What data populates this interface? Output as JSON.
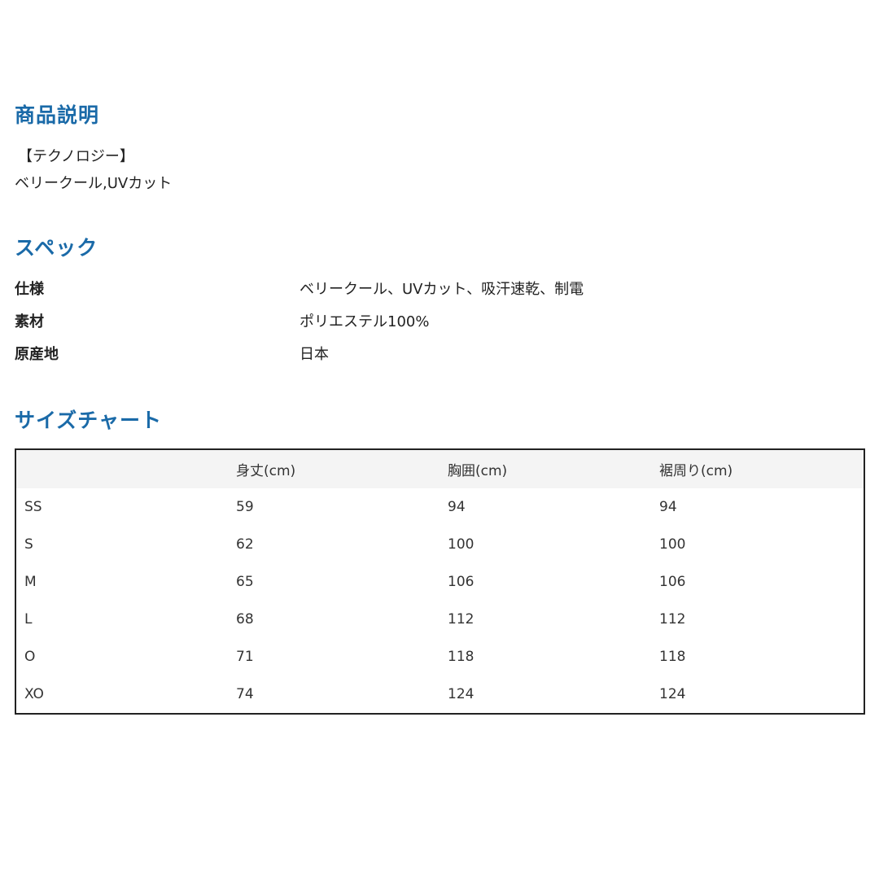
{
  "description": {
    "title": "商品説明",
    "lines": [
      "【テクノロジー】",
      "ベリークール,UVカット"
    ]
  },
  "spec": {
    "title": "スペック",
    "rows": [
      {
        "key": "仕様",
        "value": "ベリークール、UVカット、吸汗速乾、制電"
      },
      {
        "key": "素材",
        "value": "ポリエステル100%"
      },
      {
        "key": "原産地",
        "value": "日本"
      }
    ]
  },
  "size_chart": {
    "title": "サイズチャート",
    "headers": [
      "",
      "身丈(cm)",
      "胸囲(cm)",
      "裾周り(cm)"
    ],
    "rows": [
      [
        "SS",
        "59",
        "94",
        "94"
      ],
      [
        "S",
        "62",
        "100",
        "100"
      ],
      [
        "M",
        "65",
        "106",
        "106"
      ],
      [
        "L",
        "68",
        "112",
        "112"
      ],
      [
        "O",
        "71",
        "118",
        "118"
      ],
      [
        "XO",
        "74",
        "124",
        "124"
      ]
    ]
  },
  "colors": {
    "heading": "#1a6aa8"
  }
}
